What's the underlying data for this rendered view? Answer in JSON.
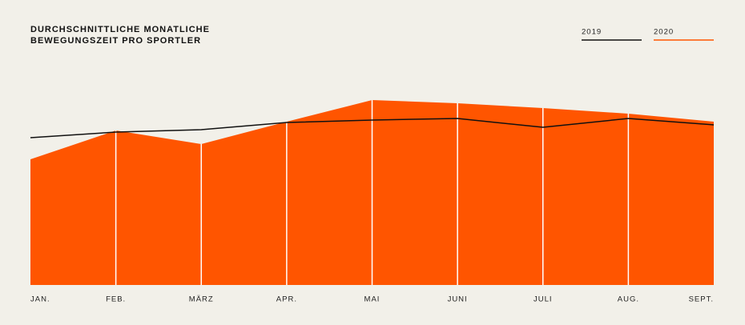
{
  "chart_data": {
    "type": "area",
    "title": "DURCHSCHNITTLICHE MONATLICHE BEWEGUNGSZEIT PRO SPORTLER",
    "categories": [
      "JAN.",
      "FEB.",
      "MÄRZ",
      "APR.",
      "MAI",
      "JUNI",
      "JULI",
      "AUG.",
      "SEPT."
    ],
    "series": [
      {
        "name": "2019",
        "color": "#111111",
        "values": [
          184,
          191,
          194,
          203,
          206,
          208,
          197,
          208,
          200
        ]
      },
      {
        "name": "2020",
        "color": "#ff5500",
        "values": [
          157,
          193,
          176,
          204,
          231,
          227,
          221,
          214,
          204
        ]
      }
    ],
    "ylim": [
      0,
      250
    ]
  }
}
